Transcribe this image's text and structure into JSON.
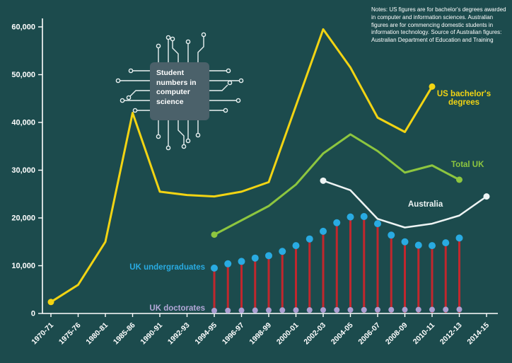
{
  "notes": "Notes: US figures are for bachelor's degrees awarded\nin computer and information sciences. Australian\nfigures are for commencing domestic students in\ninformation technology. Source of Australian figures:\nAustralian Department of Education and Training",
  "chip_label": "Student numbers in computer science",
  "labels": {
    "us": "US bachelor's\ndegrees",
    "total_uk": "Total UK",
    "australia": "Australia",
    "uk_undergraduates": "UK undergraduates",
    "uk_doctorates": "UK doctorates"
  },
  "colors": {
    "background": "#1c4b4d",
    "axis": "#ffffff",
    "us_line": "#f2d413",
    "total_uk_line": "#8dc63f",
    "australia_line": "#eef4f4",
    "uk_undergraduate_dot": "#29abe2",
    "uk_undergraduate_stem": "#c1272d",
    "uk_doctorate_dot": "#ab9fd2"
  },
  "chart_data": {
    "type": "line",
    "title": "Student numbers in computer science",
    "ylim": [
      0,
      60000
    ],
    "grid": false,
    "legend_position": "inline-labels",
    "y_ticks": [
      "0",
      "10,000",
      "20,000",
      "30,000",
      "40,000",
      "50,000",
      "60,000"
    ],
    "categories": [
      "1970-71",
      "1975-76",
      "1980-81",
      "1985-86",
      "1990-91",
      "1992-93",
      "1994-95",
      "1996-97",
      "1998-99",
      "2000-01",
      "2002-03",
      "2004-05",
      "2006-07",
      "2008-09",
      "2010-11",
      "2012-13",
      "2014-15"
    ],
    "series": [
      {
        "name": "US bachelor's degrees",
        "type": "line",
        "color": "#f2d413",
        "start_index": 0,
        "x": [
          "1970-71",
          "1975-76",
          "1980-81",
          "1985-86",
          "1990-91",
          "1992-93",
          "1994-95",
          "1996-97",
          "1998-99",
          "2000-01",
          "2002-03",
          "2004-05",
          "2006-07",
          "2008-09",
          "2010-11"
        ],
        "values": [
          2400,
          6000,
          15000,
          42000,
          25500,
          24800,
          24500,
          25500,
          27500,
          43500,
          59500,
          51500,
          41000,
          38000,
          47500
        ]
      },
      {
        "name": "Total UK",
        "type": "line",
        "color": "#8dc63f",
        "start_index": 6,
        "x": [
          "1994-95",
          "1996-97",
          "1998-99",
          "2000-01",
          "2002-03",
          "2004-05",
          "2006-07",
          "2008-09",
          "2010-11",
          "2012-13"
        ],
        "values": [
          16500,
          19500,
          22500,
          27000,
          33500,
          37500,
          34000,
          29500,
          31000,
          28000
        ]
      },
      {
        "name": "Australia",
        "type": "line",
        "color": "#eef4f4",
        "start_index": 10,
        "x": [
          "2002-03",
          "2004-05",
          "2006-07",
          "2008-09",
          "2010-11",
          "2012-13",
          "2014-15"
        ],
        "values": [
          27800,
          25800,
          19800,
          18000,
          18800,
          20500,
          24500
        ]
      },
      {
        "name": "UK undergraduates",
        "type": "lollipop",
        "dot_color": "#29abe2",
        "stem_color": "#c1272d",
        "start_index": 6,
        "step": 0.5,
        "x": [
          "1994-95",
          "1995-96",
          "1996-97",
          "1997-98",
          "1998-99",
          "1999-00",
          "2000-01",
          "2001-02",
          "2002-03",
          "2003-04",
          "2004-05",
          "2005-06",
          "2006-07",
          "2007-08",
          "2008-09",
          "2009-10",
          "2010-11",
          "2011-12",
          "2012-13"
        ],
        "values": [
          9500,
          10400,
          10900,
          11600,
          12100,
          13000,
          14200,
          15600,
          17200,
          19000,
          20200,
          20300,
          18800,
          16400,
          15000,
          14300,
          14200,
          14800,
          15800
        ]
      },
      {
        "name": "UK doctorates",
        "type": "dots",
        "dot_color": "#ab9fd2",
        "start_index": 6,
        "step": 0.5,
        "x": [
          "1994-95",
          "1995-96",
          "1996-97",
          "1997-98",
          "1998-99",
          "1999-00",
          "2000-01",
          "2001-02",
          "2002-03",
          "2003-04",
          "2004-05",
          "2005-06",
          "2006-07",
          "2007-08",
          "2008-09",
          "2009-10",
          "2010-11",
          "2011-12",
          "2012-13"
        ],
        "values": [
          600,
          620,
          640,
          660,
          680,
          700,
          710,
          720,
          730,
          740,
          750,
          760,
          770,
          780,
          790,
          800,
          810,
          830,
          850
        ]
      }
    ]
  }
}
